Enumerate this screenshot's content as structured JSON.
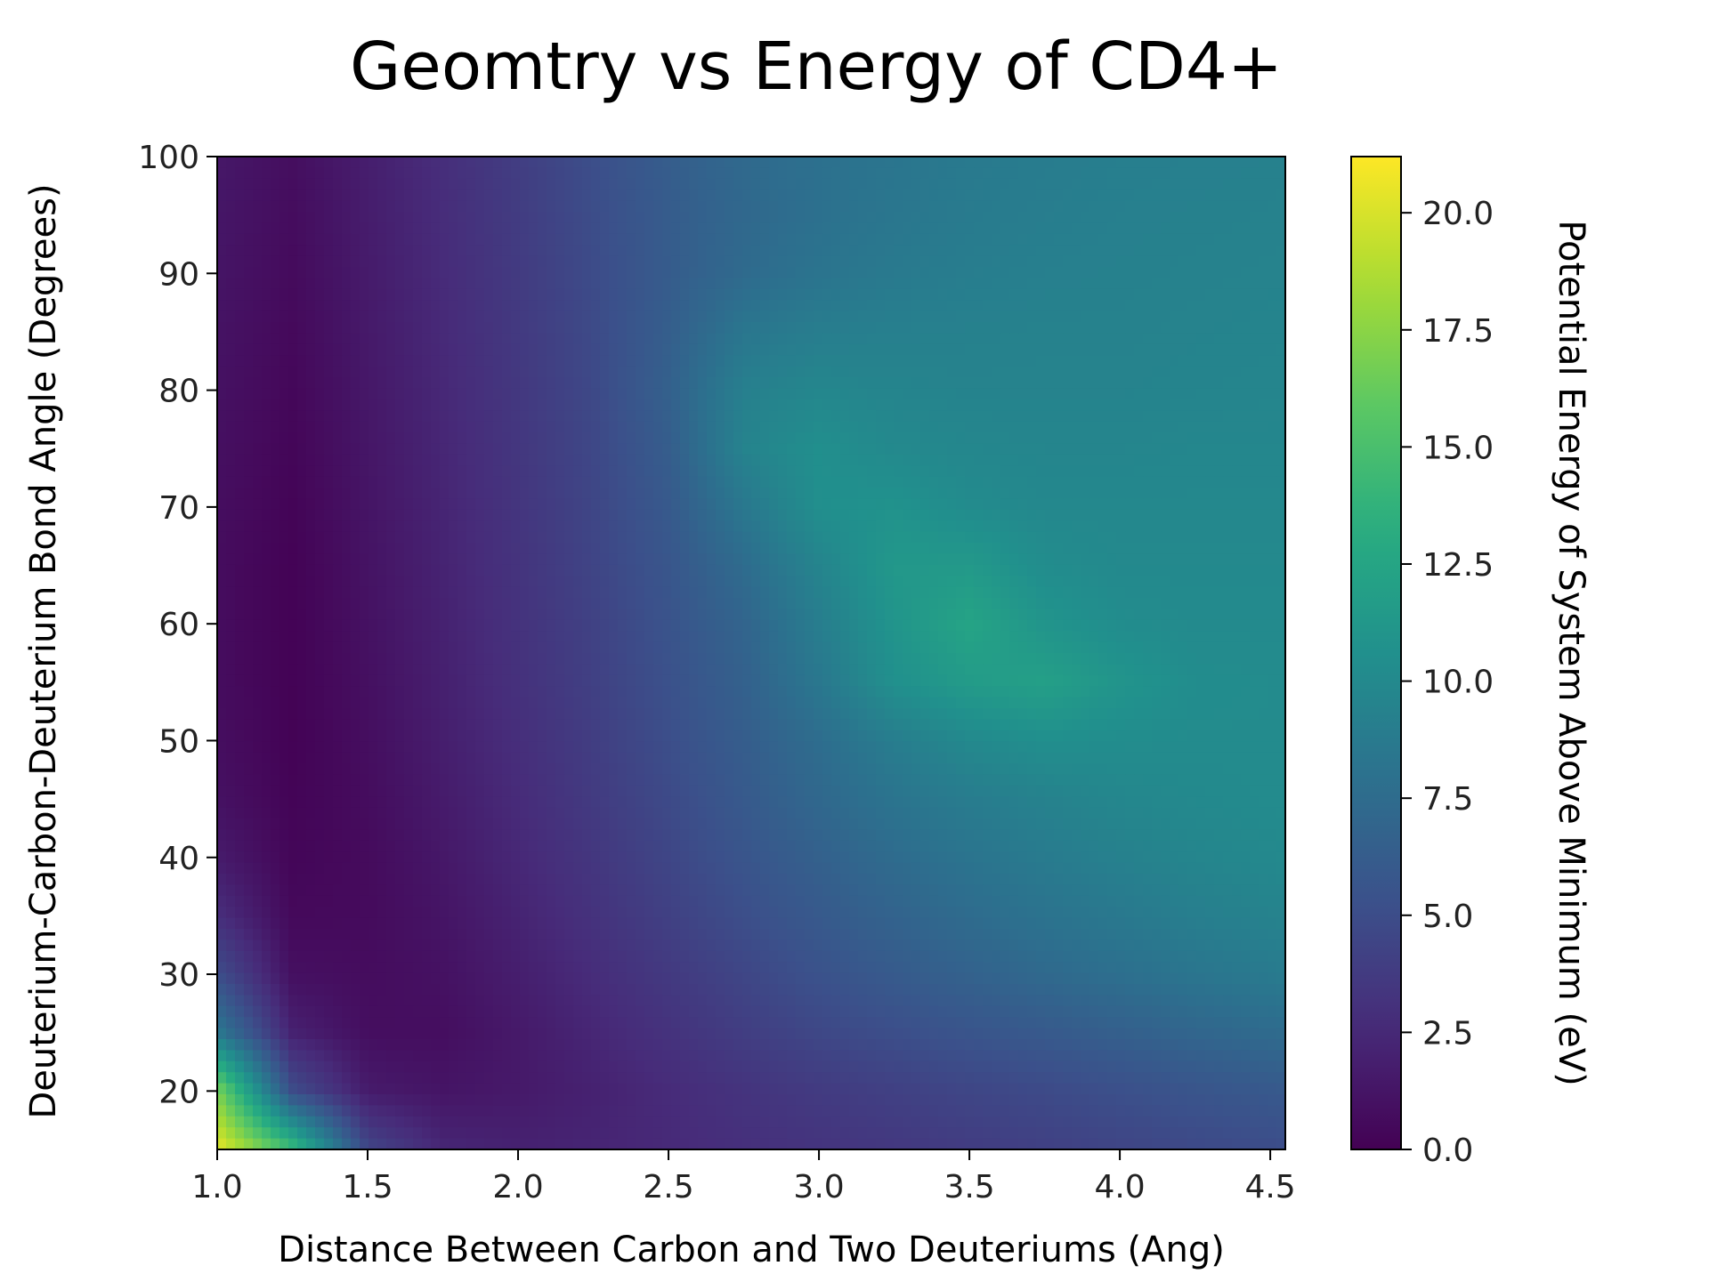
{
  "chart_data": {
    "type": "heatmap",
    "title": "Geomtry vs Energy of CD4+",
    "xlabel": "Distance Between Carbon and Two Deuteriums (Ang)",
    "ylabel": "Deuterium-Carbon-Deuterium Bond Angle (Degrees)",
    "colorbar_label": "Potential Energy of System Above Minimum (eV)",
    "xlim": [
      1.0,
      4.55
    ],
    "ylim": [
      15,
      100
    ],
    "colorbar_range": [
      0.0,
      21.2
    ],
    "x_ticks": [
      1.0,
      1.5,
      2.0,
      2.5,
      3.0,
      3.5,
      4.0,
      4.5
    ],
    "x_tick_labels": [
      "1.0",
      "1.5",
      "2.0",
      "2.5",
      "3.0",
      "3.5",
      "4.0",
      "4.5"
    ],
    "y_ticks": [
      20,
      30,
      40,
      50,
      60,
      70,
      80,
      90,
      100
    ],
    "y_tick_labels": [
      "20",
      "30",
      "40",
      "50",
      "60",
      "70",
      "80",
      "90",
      "100"
    ],
    "colorbar_ticks": [
      0.0,
      2.5,
      5.0,
      7.5,
      10.0,
      12.5,
      15.0,
      17.5,
      20.0
    ],
    "colorbar_tick_labels": [
      "0.0",
      "2.5",
      "5.0",
      "7.5",
      "10.0",
      "12.5",
      "15.0",
      "17.5",
      "20.0"
    ],
    "colormap": "viridis",
    "grid": false,
    "x": [
      1.0,
      1.25,
      1.5,
      1.75,
      2.0,
      2.25,
      2.5,
      2.75,
      3.0,
      3.25,
      3.5,
      3.75,
      4.0,
      4.25,
      4.55
    ],
    "y": [
      15,
      20,
      25,
      30,
      35,
      40,
      45,
      50,
      55,
      60,
      65,
      70,
      75,
      80,
      85,
      90,
      95,
      100
    ],
    "z": [
      [
        20.5,
        14.5,
        4.5,
        2.3,
        2.0,
        2.2,
        2.5,
        2.9,
        3.2,
        3.5,
        3.8,
        4.1,
        4.4,
        4.7,
        5.0
      ],
      [
        17.0,
        5.0,
        1.6,
        1.2,
        1.5,
        2.0,
        2.6,
        3.2,
        3.7,
        4.1,
        4.5,
        4.8,
        5.2,
        5.6,
        6.0
      ],
      [
        8.5,
        2.0,
        0.8,
        0.8,
        1.5,
        2.3,
        3.1,
        3.9,
        4.6,
        5.1,
        5.6,
        6.0,
        6.5,
        7.0,
        7.5
      ],
      [
        5.0,
        0.9,
        0.7,
        1.0,
        1.8,
        2.7,
        3.6,
        4.5,
        5.4,
        6.1,
        6.7,
        7.3,
        7.8,
        8.3,
        8.8
      ],
      [
        2.8,
        0.5,
        0.6,
        1.2,
        2.1,
        3.1,
        4.1,
        5.1,
        6.0,
        6.8,
        7.5,
        8.1,
        8.6,
        9.1,
        9.5
      ],
      [
        1.6,
        0.3,
        0.6,
        1.4,
        2.4,
        3.4,
        4.5,
        5.6,
        6.6,
        7.5,
        8.2,
        8.8,
        9.3,
        9.7,
        10.0
      ],
      [
        1.0,
        0.2,
        0.7,
        1.6,
        2.6,
        3.7,
        4.8,
        6.0,
        7.2,
        8.2,
        8.9,
        9.4,
        9.8,
        10.0,
        10.2
      ],
      [
        0.8,
        0.1,
        0.8,
        1.8,
        2.8,
        3.9,
        5.1,
        6.3,
        7.6,
        9.0,
        10.0,
        10.5,
        10.3,
        10.2,
        10.2
      ],
      [
        0.7,
        0.1,
        0.9,
        1.9,
        3.0,
        4.1,
        5.3,
        6.6,
        8.5,
        10.6,
        11.6,
        12.0,
        11.0,
        10.3,
        10.2
      ],
      [
        0.7,
        0.1,
        1.0,
        2.0,
        3.1,
        4.2,
        5.5,
        6.9,
        9.0,
        11.0,
        12.4,
        11.0,
        10.3,
        10.1,
        10.1
      ],
      [
        0.7,
        0.1,
        1.1,
        2.1,
        3.2,
        4.4,
        5.7,
        7.5,
        9.6,
        11.3,
        11.4,
        10.3,
        10.0,
        10.0,
        10.0
      ],
      [
        0.8,
        0.2,
        1.2,
        2.2,
        3.3,
        4.5,
        6.0,
        8.5,
        10.5,
        10.8,
        10.2,
        9.9,
        9.9,
        9.9,
        9.9
      ],
      [
        0.9,
        0.3,
        1.3,
        2.3,
        3.4,
        4.6,
        6.3,
        9.5,
        10.5,
        10.0,
        9.8,
        9.7,
        9.7,
        9.8,
        9.8
      ],
      [
        1.0,
        0.4,
        1.4,
        2.4,
        3.5,
        4.7,
        6.6,
        9.2,
        9.8,
        9.6,
        9.5,
        9.5,
        9.5,
        9.6,
        9.7
      ],
      [
        1.1,
        0.5,
        1.5,
        2.5,
        3.6,
        4.8,
        6.4,
        8.4,
        9.0,
        9.2,
        9.3,
        9.4,
        9.4,
        9.5,
        9.6
      ],
      [
        1.2,
        0.6,
        1.6,
        2.6,
        3.7,
        4.9,
        6.2,
        7.4,
        8.2,
        8.7,
        9.0,
        9.2,
        9.3,
        9.4,
        9.5
      ],
      [
        1.3,
        0.7,
        1.7,
        2.7,
        3.8,
        5.0,
        6.2,
        7.2,
        7.9,
        8.4,
        8.8,
        9.0,
        9.2,
        9.3,
        9.4
      ],
      [
        1.4,
        0.8,
        1.8,
        2.8,
        3.9,
        5.1,
        6.3,
        7.3,
        7.9,
        8.3,
        8.7,
        8.9,
        9.1,
        9.2,
        9.3
      ]
    ]
  }
}
